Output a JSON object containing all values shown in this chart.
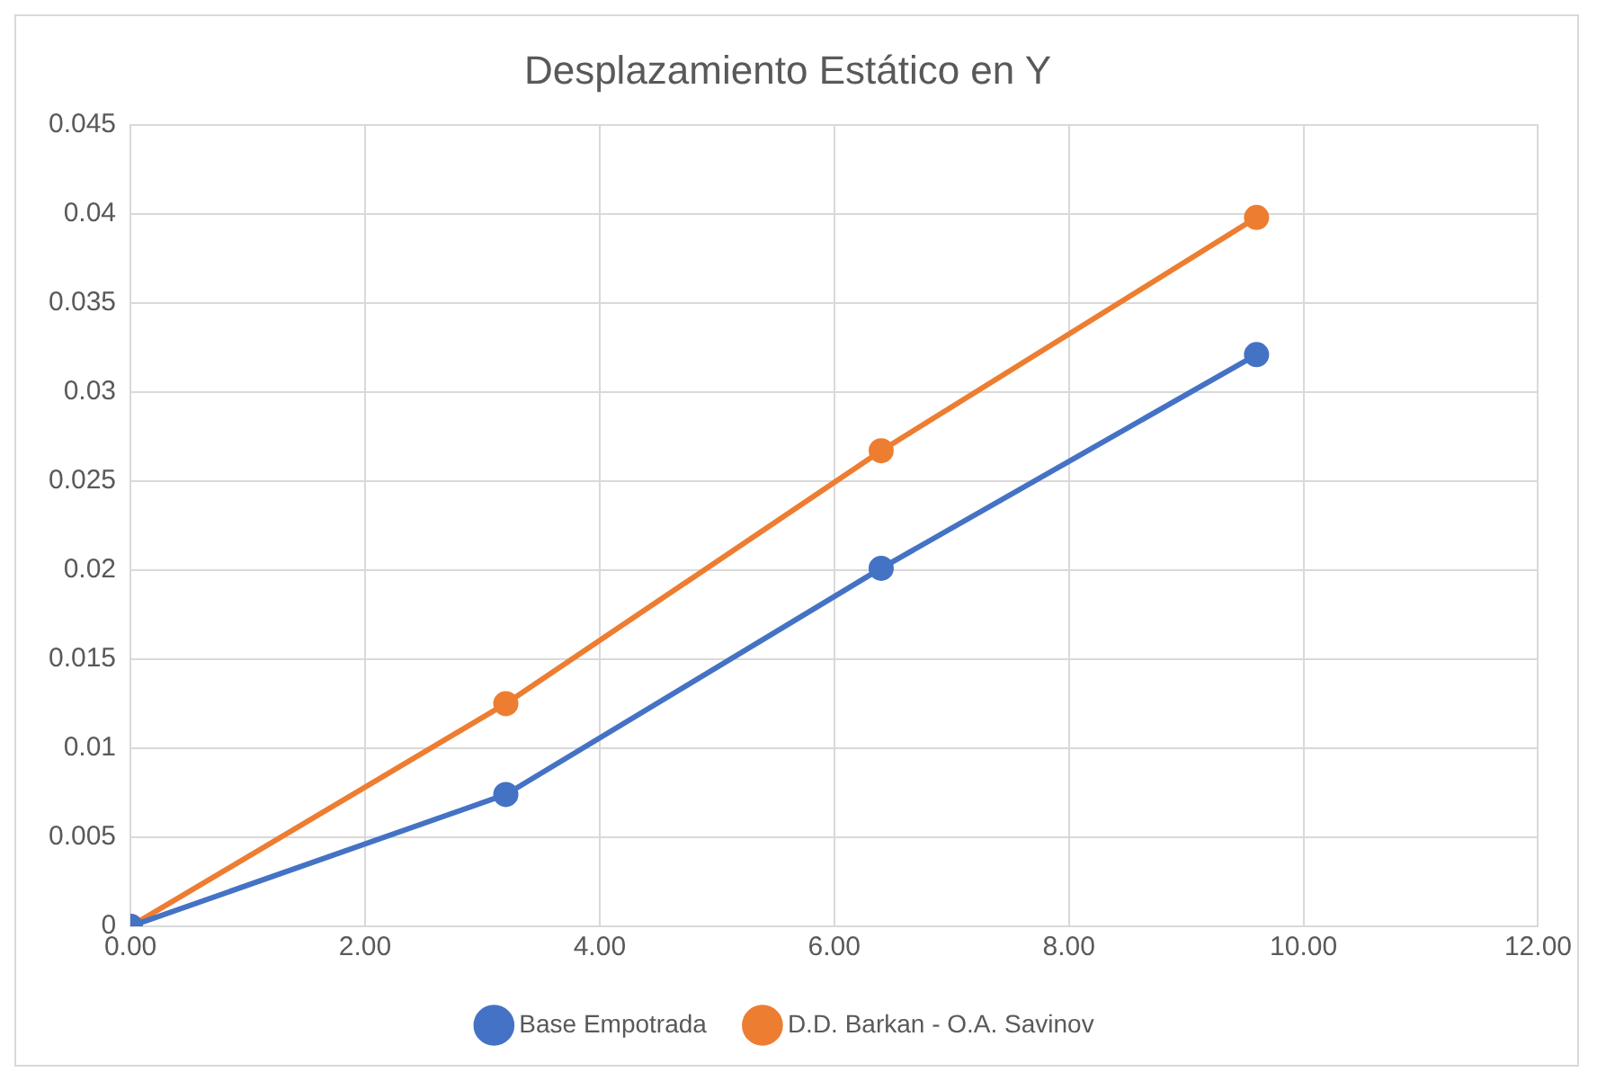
{
  "chart_data": {
    "type": "line",
    "title": "Desplazamiento Estático en Y",
    "x": [
      0,
      3.2,
      6.4,
      9.6
    ],
    "series": [
      {
        "name": "Base Empotrada",
        "color": "#4472c4",
        "values": [
          0,
          0.0074,
          0.0201,
          0.0321
        ]
      },
      {
        "name": "D.D. Barkan - O.A. Savinov",
        "color": "#ed7d31",
        "values": [
          0,
          0.0125,
          0.0267,
          0.0398
        ]
      }
    ],
    "xlim": [
      0,
      12
    ],
    "xticks": [
      {
        "value": 0,
        "label": "0.00"
      },
      {
        "value": 2,
        "label": "2.00"
      },
      {
        "value": 4,
        "label": "4.00"
      },
      {
        "value": 6,
        "label": "6.00"
      },
      {
        "value": 8,
        "label": "8.00"
      },
      {
        "value": 10,
        "label": "10.00"
      },
      {
        "value": 12,
        "label": "12.00"
      }
    ],
    "ylim": [
      0,
      0.045
    ],
    "yticks": [
      0,
      0.005,
      0.01,
      0.015,
      0.02,
      0.025,
      0.03,
      0.035,
      0.04,
      0.045
    ],
    "grid": true,
    "legend": "bottom",
    "marker": "circle",
    "line_style": "solid"
  }
}
